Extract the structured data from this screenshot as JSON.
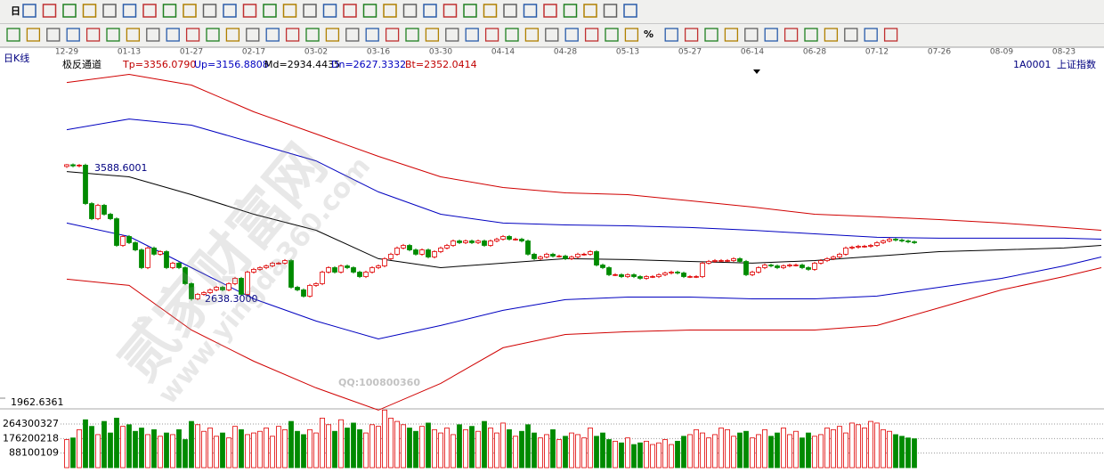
{
  "toolbar": {
    "period_button": "日",
    "percent_button": "%"
  },
  "header": {
    "period": "日K线",
    "indicator": "极反通道",
    "params": [
      "Tp=3356.0790",
      "Up=3156.8808",
      "Md=2934.4435",
      "Dn=2627.3332",
      "Bt=2352.0414"
    ],
    "code": "1A0001",
    "name": "上证指数"
  },
  "watermark": {
    "site": "贰家财富网",
    "url": "www.yingda360.com",
    "qq": "QQ:100800360"
  },
  "dates": [
    "12-29",
    "01-13",
    "01-27",
    "02-17",
    "03-02",
    "03-16",
    "03-30",
    "04-14",
    "04-28",
    "05-13",
    "05-27",
    "06-14",
    "06-28",
    "07-12",
    "07-26",
    "08-09",
    "08-23"
  ],
  "chart_data": [
    {
      "type": "candlestick",
      "title": "极反通道",
      "up_color": "#e00000",
      "down_color": "#008a00",
      "ylim": [
        1870,
        4240
      ],
      "yticks": [
        1962.6361
      ],
      "annotations": [
        "3588.6001",
        "2638.3000"
      ],
      "open": [
        3568,
        3580,
        3572,
        3577,
        3311,
        3206,
        3299,
        3237,
        3206,
        3021,
        3083,
        3040,
        2990,
        2867,
        3003,
        2960,
        2978,
        2867,
        2898,
        2867,
        2756,
        2651,
        2682,
        2694,
        2713,
        2731,
        2713,
        2756,
        2793,
        2682,
        2836,
        2855,
        2867,
        2879,
        2898,
        2898,
        2916,
        2731,
        2713,
        2669,
        2744,
        2756,
        2836,
        2867,
        2836,
        2879,
        2867,
        2836,
        2805,
        2836,
        2867,
        2879,
        2929,
        2960,
        3003,
        3021,
        2990,
        2960,
        2990,
        2941,
        2978,
        3003,
        3021,
        3052,
        3040,
        3052,
        3040,
        3052,
        3021,
        3052,
        3064,
        3083,
        3064,
        3064,
        3052,
        2960,
        2929,
        2941,
        2960,
        2947,
        2947,
        2929,
        2941,
        2960,
        2960,
        2978,
        2885,
        2867,
        2818,
        2818,
        2805,
        2818,
        2805,
        2793,
        2805,
        2805,
        2818,
        2830,
        2836,
        2830,
        2805,
        2805,
        2805,
        2898,
        2910,
        2916,
        2916,
        2916,
        2929,
        2910,
        2818,
        2836,
        2867,
        2885,
        2879,
        2867,
        2879,
        2885,
        2885,
        2867,
        2855,
        2898,
        2916,
        2929,
        2941,
        2960,
        3003,
        3009,
        3015,
        3015,
        3021,
        3040,
        3052,
        3064,
        3058,
        3052,
        3046
      ],
      "close": [
        3580,
        3572,
        3577,
        3311,
        3206,
        3299,
        3237,
        3206,
        3021,
        3083,
        3040,
        2990,
        2867,
        3003,
        2960,
        2978,
        2867,
        2898,
        2867,
        2756,
        2651,
        2682,
        2694,
        2713,
        2731,
        2713,
        2756,
        2793,
        2682,
        2836,
        2855,
        2867,
        2879,
        2898,
        2898,
        2916,
        2731,
        2713,
        2669,
        2744,
        2756,
        2836,
        2867,
        2836,
        2879,
        2867,
        2836,
        2805,
        2836,
        2867,
        2879,
        2929,
        2960,
        3003,
        3021,
        2990,
        2960,
        2990,
        2941,
        2978,
        3003,
        3021,
        3052,
        3040,
        3052,
        3040,
        3052,
        3021,
        3052,
        3064,
        3083,
        3064,
        3064,
        3052,
        2960,
        2929,
        2941,
        2960,
        2947,
        2947,
        2929,
        2941,
        2960,
        2960,
        2978,
        2885,
        2867,
        2818,
        2818,
        2805,
        2818,
        2805,
        2793,
        2805,
        2805,
        2818,
        2830,
        2836,
        2830,
        2805,
        2805,
        2805,
        2898,
        2910,
        2916,
        2916,
        2916,
        2929,
        2910,
        2818,
        2836,
        2867,
        2885,
        2879,
        2867,
        2879,
        2885,
        2885,
        2867,
        2855,
        2898,
        2916,
        2929,
        2941,
        2960,
        3003,
        3009,
        3015,
        3015,
        3021,
        3040,
        3052,
        3064,
        3058,
        3052,
        3046,
        3040
      ],
      "high": [
        3585,
        3588.6001,
        3585,
        3587,
        3321,
        3309,
        3309,
        3247,
        3216,
        3093,
        3093,
        3050,
        3000,
        3013,
        3013,
        2988,
        2988,
        2908,
        2908,
        2877,
        2766,
        2692,
        2704,
        2723,
        2741,
        2741,
        2766,
        2803,
        2803,
        2846,
        2865,
        2877,
        2889,
        2908,
        2908,
        2926,
        2926,
        2741,
        2723,
        2754,
        2766,
        2846,
        2877,
        2877,
        2889,
        2889,
        2877,
        2846,
        2846,
        2877,
        2889,
        2939,
        2970,
        3013,
        3031,
        3031,
        3000,
        3000,
        3000,
        2988,
        3013,
        3031,
        3062,
        3062,
        3062,
        3062,
        3062,
        3062,
        3062,
        3074,
        3093,
        3093,
        3074,
        3074,
        3062,
        2970,
        2951,
        2970,
        2970,
        2957,
        2957,
        2951,
        2970,
        2970,
        2988,
        2988,
        2895,
        2877,
        2828,
        2828,
        2828,
        2828,
        2815,
        2815,
        2815,
        2828,
        2840,
        2846,
        2846,
        2840,
        2815,
        2815,
        2908,
        2920,
        2926,
        2926,
        2926,
        2939,
        2939,
        2920,
        2846,
        2877,
        2895,
        2895,
        2889,
        2889,
        2895,
        2895,
        2895,
        2877,
        2908,
        2926,
        2939,
        2951,
        2970,
        3013,
        3019,
        3025,
        3025,
        3031,
        3050,
        3062,
        3074,
        3074,
        3068,
        3062,
        3056
      ],
      "low": [
        3558,
        3562,
        3562,
        3301,
        3196,
        3196,
        3227,
        3196,
        3011,
        3011,
        3030,
        2980,
        2857,
        2857,
        2950,
        2950,
        2857,
        2857,
        2857,
        2746,
        2638.3,
        2641,
        2672,
        2684,
        2703,
        2703,
        2703,
        2746,
        2672,
        2672,
        2826,
        2845,
        2857,
        2869,
        2888,
        2888,
        2721,
        2703,
        2659,
        2659,
        2734,
        2746,
        2826,
        2826,
        2826,
        2857,
        2826,
        2795,
        2795,
        2826,
        2857,
        2869,
        2919,
        2950,
        2993,
        2980,
        2950,
        2950,
        2931,
        2931,
        2968,
        2993,
        3011,
        3030,
        3030,
        3030,
        3030,
        3011,
        3011,
        3042,
        3054,
        3054,
        3054,
        3042,
        2950,
        2919,
        2919,
        2931,
        2937,
        2937,
        2919,
        2919,
        2931,
        2950,
        2950,
        2875,
        2857,
        2808,
        2808,
        2795,
        2795,
        2795,
        2783,
        2783,
        2795,
        2795,
        2808,
        2820,
        2820,
        2795,
        2795,
        2795,
        2795,
        2888,
        2900,
        2906,
        2906,
        2906,
        2900,
        2808,
        2808,
        2826,
        2857,
        2869,
        2857,
        2857,
        2869,
        2875,
        2857,
        2845,
        2845,
        2888,
        2906,
        2919,
        2931,
        2950,
        2993,
        2999,
        3005,
        3005,
        3011,
        3030,
        3042,
        3048,
        3042,
        3036,
        3030
      ],
      "bands": [
        {
          "color": "#d00000",
          "x": [
            0,
            10,
            20,
            30,
            40,
            50,
            60,
            70,
            80,
            90,
            100,
            110,
            120,
            130,
            140,
            150,
            160,
            166
          ],
          "values": [
            4150,
            4206,
            4132,
            3947,
            3793,
            3638,
            3496,
            3422,
            3385,
            3373,
            3330,
            3287,
            3237,
            3219,
            3200,
            3176,
            3145,
            3126
          ]
        },
        {
          "color": "#0000c0",
          "x": [
            0,
            10,
            20,
            30,
            40,
            50,
            60,
            70,
            80,
            90,
            100,
            110,
            120,
            130,
            140,
            150,
            160,
            166
          ],
          "values": [
            3823,
            3897,
            3854,
            3731,
            3607,
            3392,
            3237,
            3176,
            3163,
            3157,
            3145,
            3126,
            3101,
            3077,
            3071,
            3071,
            3071,
            3064
          ]
        },
        {
          "color": "#000000",
          "x": [
            0,
            10,
            20,
            30,
            40,
            50,
            60,
            70,
            80,
            90,
            100,
            110,
            120,
            130,
            140,
            150,
            160,
            166
          ],
          "values": [
            3533,
            3496,
            3373,
            3237,
            3126,
            2929,
            2867,
            2898,
            2929,
            2923,
            2910,
            2898,
            2916,
            2947,
            2978,
            2990,
            3003,
            3021
          ]
        },
        {
          "color": "#0000c0",
          "x": [
            0,
            10,
            20,
            30,
            40,
            50,
            60,
            70,
            80,
            90,
            100,
            110,
            120,
            130,
            140,
            150,
            160,
            166
          ],
          "values": [
            3176,
            3083,
            2867,
            2651,
            2497,
            2373,
            2466,
            2571,
            2645,
            2663,
            2663,
            2651,
            2651,
            2670,
            2731,
            2793,
            2879,
            2941
          ]
        },
        {
          "color": "#d00000",
          "x": [
            0,
            10,
            20,
            30,
            40,
            50,
            60,
            70,
            80,
            90,
            100,
            110,
            120,
            130,
            140,
            150,
            160,
            166
          ],
          "values": [
            2787,
            2744,
            2435,
            2219,
            2034,
            1880,
            2065,
            2312,
            2404,
            2423,
            2435,
            2435,
            2435,
            2466,
            2589,
            2713,
            2805,
            2867
          ]
        }
      ]
    },
    {
      "type": "bar",
      "ylim": [
        0,
        350600000
      ],
      "yticks": [
        264300327,
        176200218,
        88100109
      ],
      "values": [
        170000000,
        180000000,
        230000000,
        290000000,
        250000000,
        200000000,
        280000000,
        210000000,
        300000000,
        250000000,
        260000000,
        220000000,
        240000000,
        200000000,
        230000000,
        190000000,
        210000000,
        200000000,
        230000000,
        170000000,
        280000000,
        260000000,
        220000000,
        240000000,
        190000000,
        210000000,
        180000000,
        250000000,
        230000000,
        200000000,
        210000000,
        220000000,
        240000000,
        190000000,
        250000000,
        230000000,
        280000000,
        220000000,
        200000000,
        230000000,
        210000000,
        300000000,
        260000000,
        220000000,
        290000000,
        240000000,
        270000000,
        230000000,
        210000000,
        260000000,
        250000000,
        349000000,
        300000000,
        280000000,
        260000000,
        240000000,
        220000000,
        250000000,
        270000000,
        230000000,
        210000000,
        240000000,
        200000000,
        260000000,
        230000000,
        250000000,
        220000000,
        280000000,
        240000000,
        210000000,
        270000000,
        230000000,
        190000000,
        220000000,
        260000000,
        210000000,
        180000000,
        200000000,
        230000000,
        170000000,
        190000000,
        210000000,
        200000000,
        180000000,
        240000000,
        190000000,
        210000000,
        170000000,
        160000000,
        150000000,
        180000000,
        140000000,
        150000000,
        160000000,
        140000000,
        150000000,
        170000000,
        140000000,
        160000000,
        190000000,
        200000000,
        230000000,
        210000000,
        180000000,
        200000000,
        240000000,
        230000000,
        190000000,
        210000000,
        220000000,
        180000000,
        200000000,
        230000000,
        190000000,
        210000000,
        240000000,
        200000000,
        220000000,
        180000000,
        210000000,
        190000000,
        200000000,
        240000000,
        230000000,
        250000000,
        210000000,
        270000000,
        260000000,
        240000000,
        280000000,
        270000000,
        230000000,
        220000000,
        200000000,
        190000000,
        180000000,
        175000000
      ]
    }
  ]
}
